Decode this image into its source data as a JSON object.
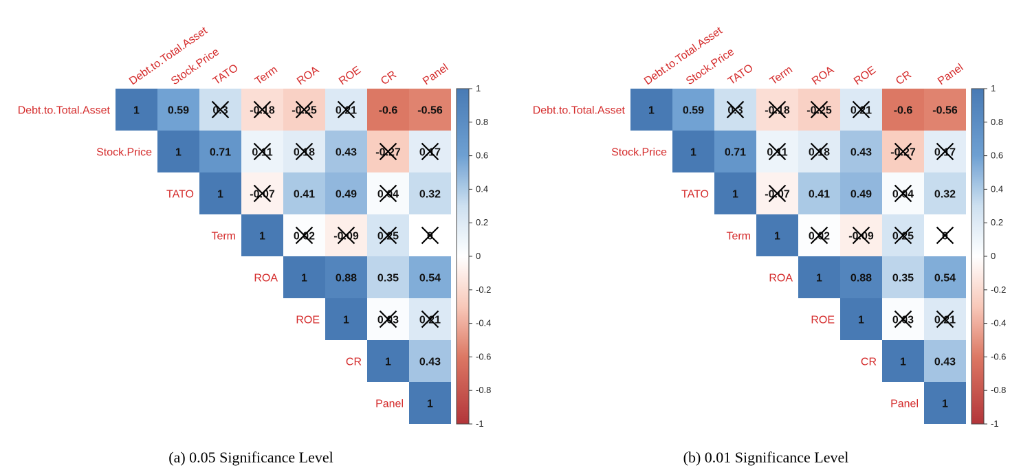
{
  "chart_data": [
    {
      "type": "heatmap",
      "subtype": "correlation-upper-triangle",
      "caption": "(a) 0.05 Significance Level",
      "variables": [
        "Debt.to.Total.Asset",
        "Stock.Price",
        "TATO",
        "Term",
        "ROA",
        "ROE",
        "CR",
        "Panel"
      ],
      "matrix_upper": [
        [
          "1",
          "0.59",
          "0.3",
          "-0.18",
          "-0.25",
          "0.21",
          "-0.6",
          "-0.56"
        ],
        [
          "1",
          "0.71",
          "0.11",
          "0.18",
          "0.43",
          "-0.27",
          "0.17"
        ],
        [
          "1",
          "-0.07",
          "0.41",
          "0.49",
          "0.04",
          "0.32"
        ],
        [
          "1",
          "0.02",
          "-0.09",
          "0.25",
          "0"
        ],
        [
          "1",
          "0.88",
          "0.35",
          "0.54"
        ],
        [
          "1",
          "0.03",
          "0.21"
        ],
        [
          "1",
          "0.43"
        ],
        [
          "1"
        ]
      ],
      "insignificant_upper": [
        [
          false,
          false,
          true,
          true,
          true,
          true,
          false,
          false
        ],
        [
          false,
          false,
          true,
          true,
          false,
          true,
          true
        ],
        [
          false,
          true,
          false,
          false,
          true,
          false
        ],
        [
          false,
          true,
          true,
          true,
          true
        ],
        [
          false,
          false,
          false,
          false
        ],
        [
          false,
          true,
          true
        ],
        [
          false,
          false
        ],
        [
          false
        ]
      ],
      "colorbar": {
        "range": [
          -1,
          1
        ],
        "ticks": [
          "1",
          "0.8",
          "0.6",
          "0.4",
          "0.2",
          "0",
          "-0.2",
          "-0.4",
          "-0.6",
          "-0.8",
          "-1"
        ]
      }
    },
    {
      "type": "heatmap",
      "subtype": "correlation-upper-triangle",
      "caption": "(b) 0.01 Significance Level",
      "variables": [
        "Debt.to.Total.Asset",
        "Stock.Price",
        "TATO",
        "Term",
        "ROA",
        "ROE",
        "CR",
        "Panel"
      ],
      "matrix_upper": [
        [
          "1",
          "0.59",
          "0.3",
          "-0.18",
          "-0.25",
          "0.21",
          "-0.6",
          "-0.56"
        ],
        [
          "1",
          "0.71",
          "0.11",
          "0.18",
          "0.43",
          "-0.27",
          "0.17"
        ],
        [
          "1",
          "-0.07",
          "0.41",
          "0.49",
          "0.04",
          "0.32"
        ],
        [
          "1",
          "0.02",
          "-0.09",
          "0.25",
          "0"
        ],
        [
          "1",
          "0.88",
          "0.35",
          "0.54"
        ],
        [
          "1",
          "0.03",
          "0.21"
        ],
        [
          "1",
          "0.43"
        ],
        [
          "1"
        ]
      ],
      "insignificant_upper": [
        [
          false,
          false,
          true,
          true,
          true,
          true,
          false,
          false
        ],
        [
          false,
          false,
          true,
          true,
          false,
          true,
          true
        ],
        [
          false,
          true,
          false,
          false,
          true,
          false
        ],
        [
          false,
          true,
          true,
          true,
          true
        ],
        [
          false,
          false,
          false,
          false
        ],
        [
          false,
          true,
          true
        ],
        [
          false,
          false
        ],
        [
          false
        ]
      ],
      "colorbar": {
        "range": [
          -1,
          1
        ],
        "ticks": [
          "1",
          "0.8",
          "0.6",
          "0.4",
          "0.2",
          "0",
          "-0.2",
          "-0.4",
          "-0.6",
          "-0.8",
          "-1"
        ]
      }
    }
  ]
}
